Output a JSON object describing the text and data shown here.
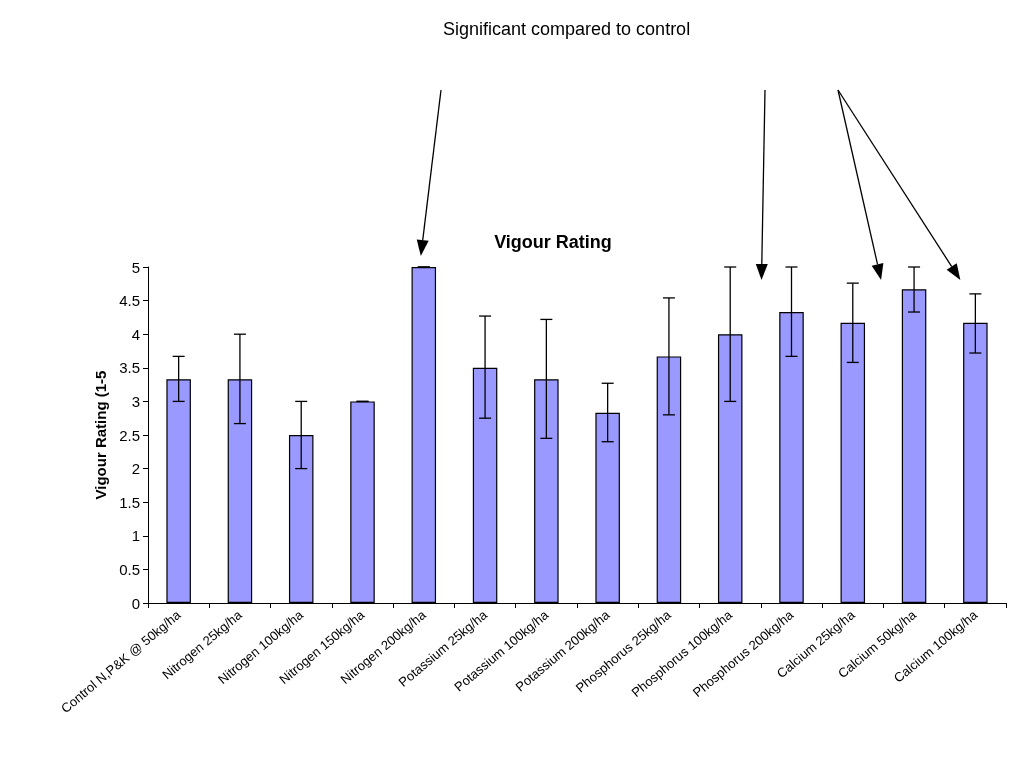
{
  "chart_data": {
    "type": "bar",
    "title": "Vigour Rating",
    "ylabel": "Vigour Rating (1-5",
    "annotations": [
      "Significant compared to control"
    ],
    "categories": [
      "Control N,P&K @ 50kg/ha",
      "Nitrogen 25kg/ha",
      "Nitrogen 100kg/ha",
      "Nitrogen 150kg/ha",
      "Nitrogen 200kg/ha",
      "Potassium 25kg/ha",
      "Potassium 100kg/ha",
      "Potassium 200kg/ha",
      "Phosphorus 25kg/ha",
      "Phosphorus 100kg/ha",
      "Phosphorus 200kg/ha",
      "Calcium 25kg/ha",
      "Calcium 50kg/ha",
      "Calcium 100kg/ha"
    ],
    "values": [
      3.33,
      3.33,
      2.5,
      3.0,
      5.0,
      3.5,
      3.33,
      2.83,
      3.67,
      4.0,
      4.33,
      4.17,
      4.67,
      4.17
    ],
    "errors": [
      [
        3.0,
        3.67
      ],
      [
        2.67,
        4.0
      ],
      [
        2.0,
        3.0
      ],
      [
        3.0,
        3.0
      ],
      [
        5.0,
        5.0
      ],
      [
        2.75,
        4.27
      ],
      [
        2.45,
        4.22
      ],
      [
        2.4,
        3.27
      ],
      [
        2.8,
        4.54
      ],
      [
        3.0,
        5.0
      ],
      [
        3.67,
        5.0
      ],
      [
        3.58,
        4.76
      ],
      [
        4.33,
        5.0
      ],
      [
        3.72,
        4.6
      ]
    ],
    "color": "#9999ff",
    "ylim": [
      0,
      5
    ],
    "yticks": [
      0,
      0.5,
      1,
      1.5,
      2,
      2.5,
      3,
      3.5,
      4,
      4.5,
      5
    ],
    "grid": false
  }
}
